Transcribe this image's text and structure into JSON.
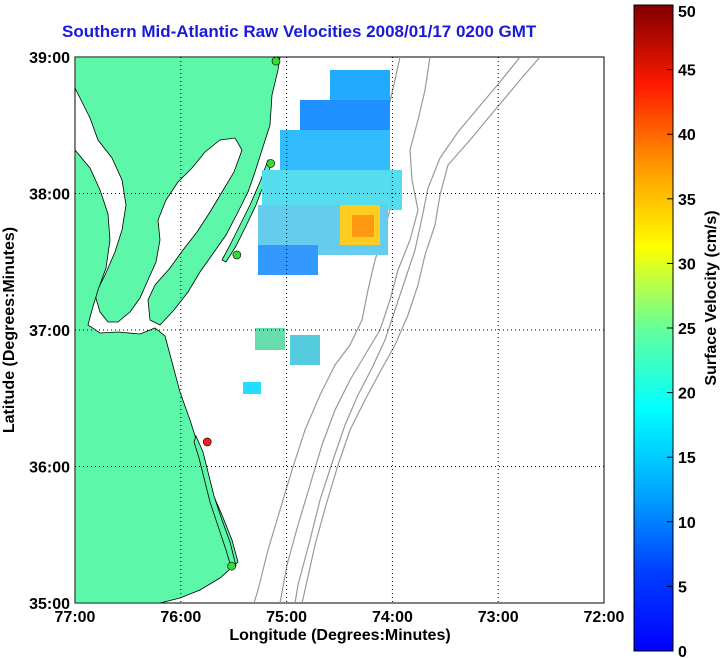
{
  "title": "Southern Mid-Atlantic Raw Velocities 2008/01/17 0200 GMT",
  "map": {
    "xlabel": "Longitude (Degrees:Minutes)",
    "ylabel": "Latitude (Degrees:Minutes)",
    "xlim": [
      -77,
      -72
    ],
    "ylim": [
      35,
      39
    ],
    "x_ticks": [
      "77:00",
      "76:00",
      "75:00",
      "74:00",
      "73:00",
      "72:00"
    ],
    "y_ticks": [
      "39:00",
      "38:00",
      "37:00",
      "36:00",
      "35:00"
    ],
    "grid": "dotted",
    "land_color": "#5cf7a8",
    "ocean_color": "#ffffff",
    "bathymetry_color": "#999999",
    "stations": [
      {
        "lon": -75.1,
        "lat": 38.97,
        "color": "#33dd33"
      },
      {
        "lon": -75.15,
        "lat": 38.22,
        "color": "#33dd33"
      },
      {
        "lon": -75.47,
        "lat": 37.55,
        "color": "#33dd33"
      },
      {
        "lon": -75.75,
        "lat": 36.18,
        "color": "#ee2222"
      },
      {
        "lon": -75.52,
        "lat": 35.27,
        "color": "#33dd33"
      }
    ]
  },
  "colorbar": {
    "label": "Surface Velocity (cm/s)",
    "min": 0,
    "max": 50,
    "ticks": [
      "0",
      "5",
      "10",
      "15",
      "20",
      "25",
      "30",
      "35",
      "40",
      "45",
      "50"
    ]
  }
}
